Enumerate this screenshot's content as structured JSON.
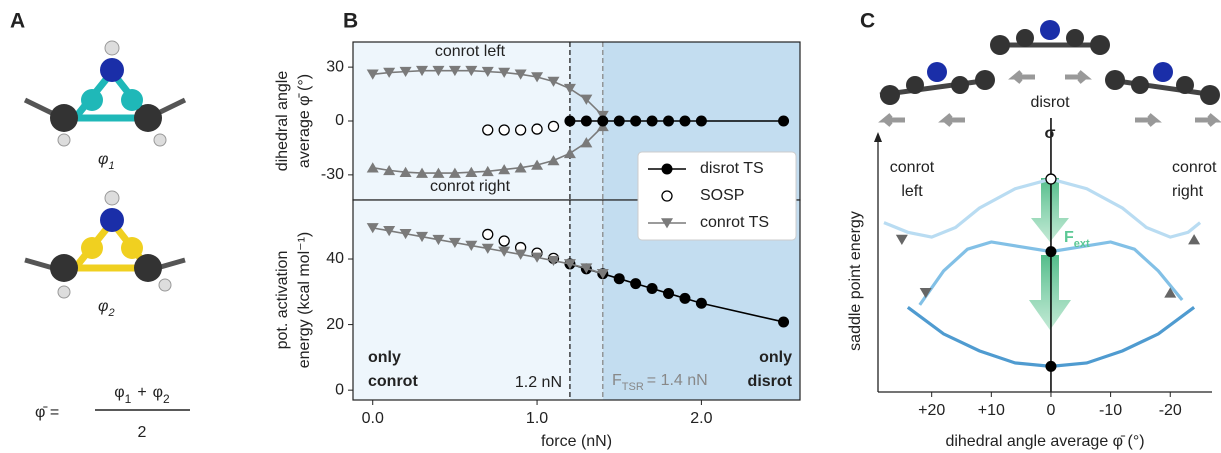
{
  "panel_labels": [
    "A",
    "B",
    "C"
  ],
  "panel_a": {
    "phi1": {
      "base": "φ",
      "sub": "1"
    },
    "phi2": {
      "base": "φ",
      "sub": "2"
    },
    "formula": {
      "lhs": "φ̄ =",
      "a": {
        "base": "φ",
        "sub": "1"
      },
      "op": "+",
      "b": {
        "base": "φ",
        "sub": "2"
      },
      "denominator": "2"
    }
  },
  "chart_data": [
    {
      "type": "line",
      "ylabel": [
        "dihedral angle",
        "average φ̄ (°)"
      ],
      "xlim": [
        -0.12,
        2.6
      ],
      "ylim": [
        -44,
        44
      ],
      "yticks": [
        -30,
        0,
        30
      ],
      "shading": [
        {
          "from": -0.12,
          "to": 1.2,
          "color": "#eef6fc"
        },
        {
          "from": 1.2,
          "to": 1.4,
          "color": "#d9eaf7"
        },
        {
          "from": 1.4,
          "to": 2.6,
          "color": "#c3ddf0"
        }
      ],
      "vlines": [
        {
          "x": 1.2,
          "color": "#222222"
        },
        {
          "x": 1.4,
          "color": "#888888"
        }
      ],
      "series": [
        {
          "name": "conrot left",
          "color": "#7a7a7a",
          "marker": "triangle-down",
          "x": [
            0,
            0.1,
            0.2,
            0.3,
            0.4,
            0.5,
            0.6,
            0.7,
            0.8,
            0.9,
            1.0,
            1.1,
            1.2,
            1.3,
            1.4
          ],
          "values": [
            26,
            27,
            27.5,
            28,
            28,
            28,
            28,
            27.5,
            27,
            26,
            24.5,
            22,
            18,
            12,
            3
          ]
        },
        {
          "name": "conrot right",
          "color": "#7a7a7a",
          "marker": "triangle-up",
          "x": [
            0,
            0.1,
            0.2,
            0.3,
            0.4,
            0.5,
            0.6,
            0.7,
            0.8,
            0.9,
            1.0,
            1.1,
            1.2,
            1.3,
            1.4
          ],
          "values": [
            -26,
            -27.5,
            -28.5,
            -29,
            -29,
            -29,
            -28.5,
            -28,
            -27,
            -26,
            -24.5,
            -22,
            -18,
            -12,
            -3
          ]
        },
        {
          "color": "#000000",
          "marker": "circle-open",
          "line": false,
          "x": [
            0.7,
            0.8,
            0.9,
            1.0,
            1.1
          ],
          "values": [
            -5,
            -5,
            -5,
            -4.5,
            -3
          ]
        },
        {
          "color": "#000000",
          "marker": "circle",
          "x": [
            1.2,
            1.3,
            1.4,
            1.5,
            1.6,
            1.7,
            1.8,
            1.9,
            2.0,
            2.5
          ],
          "values": [
            0,
            0,
            0,
            0,
            0,
            0,
            0,
            0,
            0,
            0
          ]
        }
      ]
    },
    {
      "type": "line",
      "xlabel": "force (nN)",
      "ylabel": [
        "pot. activation",
        "energy (kcal mol⁻¹)"
      ],
      "xlim": [
        -0.12,
        2.6
      ],
      "ylim": [
        -3,
        58
      ],
      "xticks": [
        {
          "value": 0,
          "label": "0.0"
        },
        {
          "value": 1,
          "label": "1.0"
        },
        {
          "value": 2,
          "label": "2.0"
        }
      ],
      "yticks": [
        0,
        20,
        40
      ],
      "legend": "upper right",
      "shading": [
        {
          "from": -0.12,
          "to": 1.2,
          "color": "#eef6fc"
        },
        {
          "from": 1.2,
          "to": 1.4,
          "color": "#d9eaf7"
        },
        {
          "from": 1.4,
          "to": 2.6,
          "color": "#c3ddf0"
        }
      ],
      "vlines": [
        {
          "x": 1.2,
          "color": "#222222"
        },
        {
          "x": 1.4,
          "color": "#888888"
        }
      ],
      "annotations": {
        "force_12": "1.2 nN",
        "f_tsr": {
          "base": "F",
          "sub": "TSR",
          "rest": "= 1.4 nN"
        },
        "only_conrot": [
          "only",
          "conrot"
        ],
        "only_disrot": [
          "only",
          "disrot"
        ]
      },
      "series": [
        {
          "name": "disrot TS",
          "color": "#000000",
          "marker": "circle",
          "x": [
            1.2,
            1.3,
            1.4,
            1.5,
            1.6,
            1.7,
            1.8,
            1.9,
            2.0,
            2.5
          ],
          "values": [
            38.5,
            37,
            35.5,
            34,
            32.5,
            31,
            29.5,
            28,
            26.5,
            20.8
          ]
        },
        {
          "name": "SOSP",
          "color": "#000000",
          "marker": "circle-open",
          "line": false,
          "x": [
            0.7,
            0.8,
            0.9,
            1.0,
            1.1
          ],
          "values": [
            47.5,
            45.5,
            43.5,
            41.8,
            40.2
          ]
        },
        {
          "name": "conrot TS",
          "color": "#7a7a7a",
          "marker": "triangle-down",
          "x": [
            0,
            0.1,
            0.2,
            0.3,
            0.4,
            0.5,
            0.6,
            0.7,
            0.8,
            0.9,
            1.0,
            1.1,
            1.2,
            1.3,
            1.4
          ],
          "values": [
            49.5,
            48.6,
            47.7,
            46.8,
            45.9,
            45,
            44.1,
            43.2,
            42.3,
            41.4,
            40.5,
            39.5,
            38.5,
            37.2,
            35.5
          ]
        }
      ]
    },
    {
      "type": "line",
      "xlabel": "dihedral angle average φ̄ (°)",
      "ylabel": "saddle point energy",
      "xlim": [
        29,
        -27
      ],
      "ylim": [
        0,
        5
      ],
      "xticks": [
        {
          "value": 20,
          "label": "+20"
        },
        {
          "value": 10,
          "label": "+10"
        },
        0,
        -10,
        -20
      ],
      "vline": 0,
      "annotations": {
        "conrot_left": [
          "conrot",
          "left"
        ],
        "conrot_right": [
          "conrot",
          "right"
        ],
        "disrot": "disrot",
        "sigma": "σ",
        "f_ext": {
          "base": "F",
          "sub": "ext"
        }
      },
      "series": [
        {
          "color": "#b9dcf2",
          "x": [
            28,
            24,
            20,
            16,
            12,
            6,
            0,
            -6,
            -12,
            -16,
            -20,
            -23,
            -25
          ],
          "values": [
            3.5,
            3.3,
            3.2,
            3.4,
            3.8,
            4.2,
            4.4,
            4.2,
            3.8,
            3.4,
            3.2,
            3.3,
            3.5
          ]
        },
        {
          "color": "#82c0e6",
          "x": [
            22,
            18,
            14,
            10,
            5,
            0,
            -5,
            -10,
            -14,
            -18,
            -22
          ],
          "values": [
            1.8,
            2.5,
            2.95,
            3.1,
            3.0,
            2.9,
            3.0,
            3.1,
            2.95,
            2.5,
            1.9
          ]
        },
        {
          "color": "#4f9bd0",
          "x": [
            24,
            18,
            12,
            6,
            0,
            -6,
            -12,
            -18,
            -24
          ],
          "values": [
            1.75,
            1.2,
            0.85,
            0.6,
            0.53,
            0.6,
            0.85,
            1.2,
            1.75
          ]
        }
      ],
      "points": [
        {
          "x": 25,
          "y": 3.15,
          "marker": "triangle-down",
          "color": "#666666"
        },
        {
          "x": -24,
          "y": 3.15,
          "marker": "triangle-up",
          "color": "#666666"
        },
        {
          "x": 21,
          "y": 2.05,
          "marker": "triangle-down",
          "color": "#666666"
        },
        {
          "x": -20,
          "y": 2.05,
          "marker": "triangle-up",
          "color": "#666666"
        },
        {
          "x": 0,
          "y": 4.4,
          "marker": "circle-open",
          "color": "#000000"
        },
        {
          "x": 0,
          "y": 2.9,
          "marker": "circle",
          "color": "#000000"
        },
        {
          "x": 0,
          "y": 0.53,
          "marker": "circle",
          "color": "#000000"
        }
      ]
    }
  ]
}
